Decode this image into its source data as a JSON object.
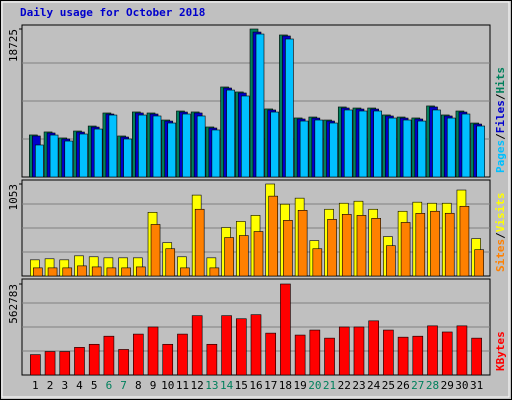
{
  "chart_data": [
    {
      "type": "bar",
      "title": "Daily usage for October 2018",
      "ylim": [
        0,
        18725
      ],
      "yticks": [
        18725
      ],
      "legend_separator": "/",
      "series": [
        {
          "name": "Hits",
          "color": "#00805c",
          "values": [
            5320,
            5700,
            4940,
            5820,
            6450,
            8100,
            5190,
            8230,
            8100,
            7210,
            8350,
            8230,
            6330,
            11390,
            10760,
            18725,
            8610,
            17970,
            7470,
            7590,
            7210,
            8860,
            8730,
            8730,
            7850,
            7590,
            7470,
            8990,
            7850,
            8350,
            6830
          ]
        },
        {
          "name": "Files",
          "color": "#0000cc",
          "values": [
            5190,
            5570,
            4810,
            5690,
            6320,
            7970,
            5060,
            8100,
            7970,
            7080,
            8220,
            8100,
            6200,
            11260,
            10630,
            18340,
            8480,
            17840,
            7340,
            7460,
            7080,
            8730,
            8600,
            8600,
            7720,
            7460,
            7340,
            8860,
            7720,
            8220,
            6700
          ]
        },
        {
          "name": "Pages",
          "color": "#00c0ff",
          "values": [
            4050,
            5310,
            4550,
            5440,
            6070,
            7840,
            4810,
            7840,
            7720,
            6830,
            7970,
            7720,
            5950,
            11000,
            10250,
            18090,
            8220,
            17460,
            7080,
            7210,
            6830,
            8480,
            8350,
            8350,
            7460,
            7210,
            7080,
            8480,
            7460,
            7970,
            6450
          ]
        }
      ]
    },
    {
      "type": "bar",
      "ylim": [
        0,
        1053
      ],
      "yticks": [
        1053
      ],
      "legend_separator": "/",
      "series": [
        {
          "name": "Visits",
          "color": "#ffff00",
          "values": [
            185,
            197,
            185,
            231,
            220,
            208,
            208,
            208,
            729,
            382,
            220,
            926,
            208,
            555,
            625,
            694,
            1053,
            822,
            891,
            405,
            764,
            833,
            856,
            764,
            451,
            741,
            845,
            833,
            833,
            984,
            428
          ]
        },
        {
          "name": "Sites",
          "color": "#ff8000",
          "values": [
            93,
            93,
            93,
            116,
            104,
            93,
            93,
            104,
            590,
            312,
            93,
            764,
            93,
            440,
            463,
            509,
            914,
            637,
            752,
            312,
            648,
            706,
            694,
            660,
            347,
            613,
            717,
            741,
            718,
            798,
            301
          ]
        }
      ]
    },
    {
      "type": "bar",
      "ylim": [
        0,
        562783
      ],
      "yticks": [
        562783
      ],
      "categories": [
        "1",
        "2",
        "3",
        "4",
        "5",
        "6",
        "7",
        "8",
        "9",
        "10",
        "11",
        "12",
        "13",
        "14",
        "15",
        "16",
        "17",
        "18",
        "19",
        "20",
        "21",
        "22",
        "23",
        "24",
        "25",
        "26",
        "27",
        "28",
        "29",
        "30",
        "31"
      ],
      "category_colors": [
        "#000000",
        "#000000",
        "#000000",
        "#000000",
        "#000000",
        "#00805c",
        "#00805c",
        "#000000",
        "#000000",
        "#000000",
        "#000000",
        "#000000",
        "#00805c",
        "#00805c",
        "#000000",
        "#000000",
        "#000000",
        "#000000",
        "#000000",
        "#00805c",
        "#00805c",
        "#000000",
        "#000000",
        "#000000",
        "#000000",
        "#000000",
        "#00805c",
        "#00805c",
        "#000000",
        "#000000",
        "#000000"
      ],
      "series": [
        {
          "name": "KBytes",
          "color": "#ff0000",
          "values": [
            126000,
            145000,
            145000,
            171000,
            190000,
            240000,
            158000,
            253000,
            297000,
            190000,
            253000,
            367000,
            190000,
            367000,
            348000,
            373000,
            259000,
            562783,
            247000,
            278000,
            228000,
            297000,
            297000,
            335000,
            278000,
            234000,
            240000,
            304000,
            266000,
            304000,
            228000
          ]
        }
      ]
    }
  ]
}
